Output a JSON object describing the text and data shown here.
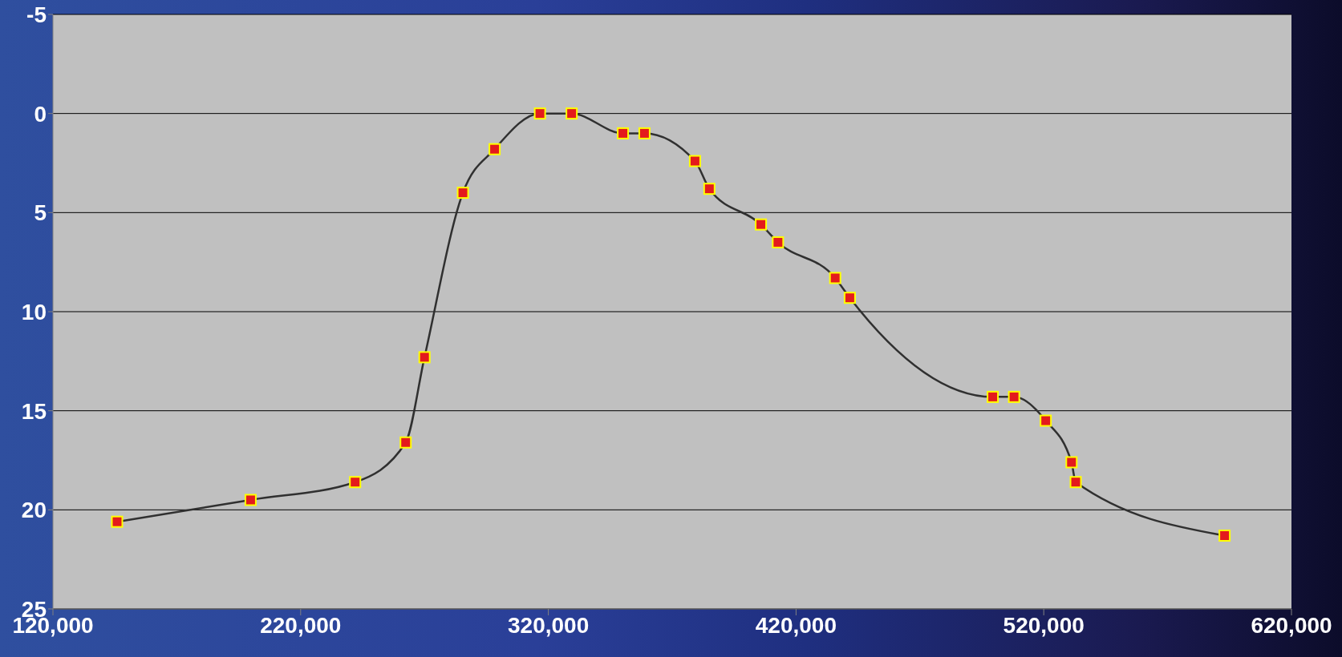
{
  "chart_data": {
    "type": "line",
    "marker": "square",
    "grid": "y",
    "xlim": [
      120000,
      620000
    ],
    "xticks": [
      {
        "value": 120000,
        "label": "120,000"
      },
      {
        "value": 220000,
        "label": "220,000"
      },
      {
        "value": 320000,
        "label": "320,000"
      },
      {
        "value": 420000,
        "label": "420,000"
      },
      {
        "value": 520000,
        "label": "520,000"
      },
      {
        "value": 620000,
        "label": "620,000"
      }
    ],
    "ylim": [
      25,
      -5
    ],
    "yticks": [
      -5,
      0,
      5,
      10,
      15,
      20,
      25
    ],
    "x": [
      145900,
      199800,
      242000,
      262400,
      270000,
      285500,
      298300,
      316600,
      329400,
      350100,
      358800,
      379200,
      385000,
      405800,
      412700,
      435800,
      441700,
      499400,
      508000,
      520800,
      531200,
      532900,
      593000
    ],
    "series": [
      {
        "color": "#e41a1c",
        "values": [
          20.6,
          19.5,
          18.6,
          16.6,
          12.3,
          4.0,
          1.8,
          0,
          0,
          1.0,
          1.0,
          2.4,
          3.8,
          5.6,
          6.5,
          8.3,
          9.3,
          14.3,
          14.3,
          15.5,
          17.6,
          18.6,
          21.3
        ]
      }
    ]
  }
}
